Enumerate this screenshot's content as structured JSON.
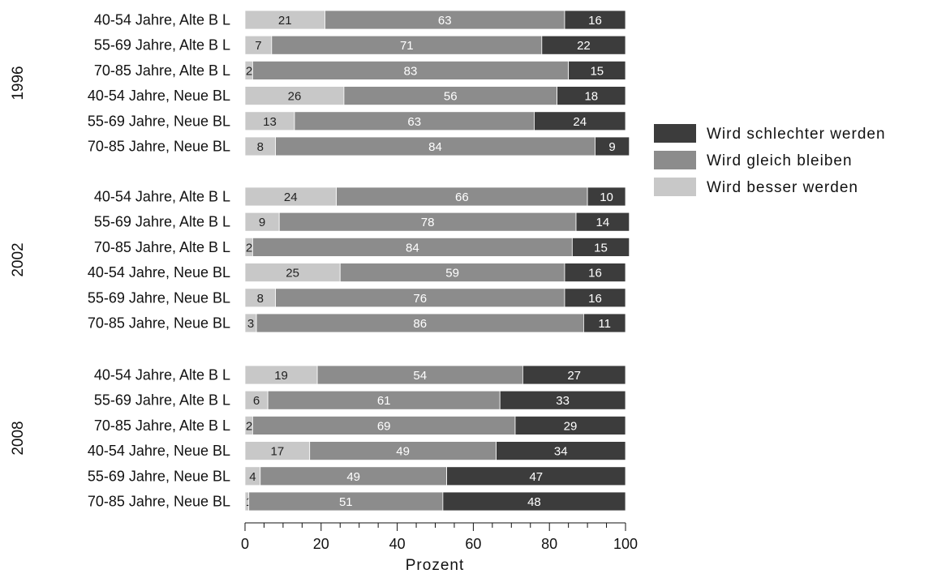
{
  "chart_data": {
    "type": "bar",
    "orientation": "horizontal",
    "stacked": true,
    "xlabel": "Prozent",
    "xlim": [
      0,
      100
    ],
    "xticks": [
      "0",
      "20",
      "40",
      "60",
      "80",
      "100"
    ],
    "colors": {
      "better": "#c8c8c8",
      "same": "#8c8c8c",
      "worse": "#3c3c3c",
      "label_on_light": "#222222",
      "label_on_dark": "#ffffff"
    },
    "legend": {
      "position": "right",
      "entries": [
        {
          "key": "worse",
          "label": "Wird schlechter werden"
        },
        {
          "key": "same",
          "label": "Wird gleich bleiben"
        },
        {
          "key": "better",
          "label": "Wird besser werden"
        }
      ]
    },
    "groups": [
      {
        "label": "1996",
        "rows": [
          {
            "label": "40-54 Jahre, Alte B L",
            "better": 21,
            "same": 63,
            "worse": 16
          },
          {
            "label": "55-69 Jahre, Alte B L",
            "better": 7,
            "same": 71,
            "worse": 22
          },
          {
            "label": "70-85 Jahre, Alte B L",
            "better": 2,
            "same": 83,
            "worse": 15
          },
          {
            "label": "40-54 Jahre, Neue BL",
            "better": 26,
            "same": 56,
            "worse": 18
          },
          {
            "label": "55-69 Jahre, Neue BL",
            "better": 13,
            "same": 63,
            "worse": 24
          },
          {
            "label": "70-85 Jahre, Neue BL",
            "better": 8,
            "same": 84,
            "worse": 9
          }
        ]
      },
      {
        "label": "2002",
        "rows": [
          {
            "label": "40-54 Jahre, Alte B L",
            "better": 24,
            "same": 66,
            "worse": 10
          },
          {
            "label": "55-69 Jahre, Alte B L",
            "better": 9,
            "same": 78,
            "worse": 14
          },
          {
            "label": "70-85 Jahre, Alte B L",
            "better": 2,
            "same": 84,
            "worse": 15
          },
          {
            "label": "40-54 Jahre, Neue BL",
            "better": 25,
            "same": 59,
            "worse": 16
          },
          {
            "label": "55-69 Jahre, Neue BL",
            "better": 8,
            "same": 76,
            "worse": 16
          },
          {
            "label": "70-85 Jahre, Neue BL",
            "better": 3,
            "same": 86,
            "worse": 11
          }
        ]
      },
      {
        "label": "2008",
        "rows": [
          {
            "label": "40-54 Jahre, Alte B L",
            "better": 19,
            "same": 54,
            "worse": 27
          },
          {
            "label": "55-69 Jahre, Alte B L",
            "better": 6,
            "same": 61,
            "worse": 33
          },
          {
            "label": "70-85 Jahre, Alte B L",
            "better": 2,
            "same": 69,
            "worse": 29
          },
          {
            "label": "40-54 Jahre, Neue BL",
            "better": 17,
            "same": 49,
            "worse": 34
          },
          {
            "label": "55-69 Jahre, Neue BL",
            "better": 4,
            "same": 49,
            "worse": 47
          },
          {
            "label": "70-85 Jahre, Neue BL",
            "better": 1,
            "same": 51,
            "worse": 48
          }
        ]
      }
    ]
  }
}
